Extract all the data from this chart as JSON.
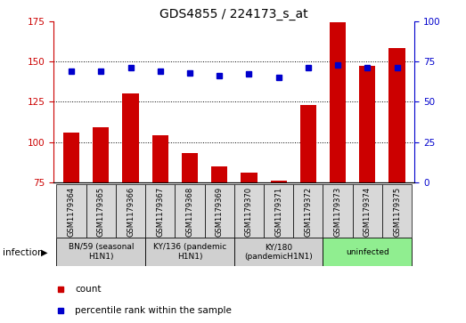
{
  "title": "GDS4855 / 224173_s_at",
  "samples": [
    "GSM1179364",
    "GSM1179365",
    "GSM1179366",
    "GSM1179367",
    "GSM1179368",
    "GSM1179369",
    "GSM1179370",
    "GSM1179371",
    "GSM1179372",
    "GSM1179373",
    "GSM1179374",
    "GSM1179375"
  ],
  "count_values": [
    106,
    109,
    130,
    104,
    93,
    85,
    81,
    76,
    123,
    174,
    147,
    158
  ],
  "percentile_values": [
    69,
    69,
    71,
    69,
    68,
    66,
    67,
    65,
    71,
    73,
    71,
    71
  ],
  "ylim_left": [
    75,
    175
  ],
  "ylim_right": [
    0,
    100
  ],
  "yticks_left": [
    75,
    100,
    125,
    150,
    175
  ],
  "yticks_right": [
    0,
    25,
    50,
    75,
    100
  ],
  "groups": [
    {
      "label": "BN/59 (seasonal\nH1N1)",
      "start": 0,
      "end": 3,
      "color": "#d0d0d0"
    },
    {
      "label": "KY/136 (pandemic\nH1N1)",
      "start": 3,
      "end": 6,
      "color": "#d0d0d0"
    },
    {
      "label": "KY/180\n(pandemicH1N1)",
      "start": 6,
      "end": 9,
      "color": "#d0d0d0"
    },
    {
      "label": "uninfected",
      "start": 9,
      "end": 12,
      "color": "#90ee90"
    }
  ],
  "infection_label": "infection",
  "bar_color": "#cc0000",
  "dot_color": "#0000cc",
  "legend_count_label": "count",
  "legend_percentile_label": "percentile rank within the sample",
  "axis_color_left": "#cc0000",
  "axis_color_right": "#0000cc",
  "grid_yticks": [
    100,
    125,
    150
  ],
  "bar_bottom": 75
}
